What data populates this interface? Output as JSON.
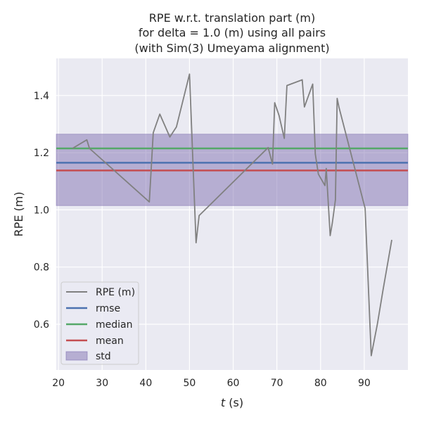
{
  "chart_data": {
    "type": "line",
    "title": [
      "RPE w.r.t. translation part (m)",
      "for delta = 1.0 (m) using all pairs",
      "(with Sim(3) Umeyama alignment)"
    ],
    "xlabel_italic": "t",
    "xlabel_unit": " (s)",
    "ylabel": "RPE (m)",
    "xlim": [
      19.5,
      100
    ],
    "ylim": [
      0.44,
      1.53
    ],
    "x_ticks": [
      20,
      30,
      40,
      50,
      60,
      70,
      80,
      90
    ],
    "y_ticks": [
      0.6,
      0.8,
      1.0,
      1.2,
      1.4
    ],
    "y_tick_labels": [
      "0.6",
      "0.8",
      "1.0",
      "1.2",
      "1.4"
    ],
    "grid": true,
    "legend_position": "lower-left",
    "colors": {
      "background": "#eaeaf2",
      "grid": "#ffffff",
      "rpe": "#808080",
      "rmse": "#4c72b0",
      "median": "#55a868",
      "mean": "#c44e52",
      "std_fill": "#8172b2"
    },
    "series": [
      {
        "name": "RPE (m)",
        "x": [
          23.2,
          26.5,
          27.1,
          40.8,
          41.7,
          43.2,
          45.5,
          47.0,
          50.0,
          51.5,
          52.2,
          68.0,
          69.0,
          69.5,
          70.5,
          71.7,
          72.3,
          75.8,
          76.3,
          78.2,
          78.8,
          79.5,
          81.0,
          81.3,
          82.2,
          82.7,
          83.4,
          83.8,
          84.2,
          90.2,
          91.6,
          93.0,
          94.3,
          96.3
        ],
        "y": [
          1.215,
          1.245,
          1.215,
          1.028,
          1.27,
          1.335,
          1.255,
          1.29,
          1.475,
          0.885,
          0.98,
          1.218,
          1.16,
          1.375,
          1.33,
          1.25,
          1.435,
          1.455,
          1.36,
          1.44,
          1.195,
          1.125,
          1.085,
          1.145,
          0.91,
          0.955,
          1.035,
          1.39,
          1.36,
          1.005,
          0.49,
          0.6,
          0.72,
          0.895
        ]
      },
      {
        "name": "rmse",
        "value": 1.165
      },
      {
        "name": "median",
        "value": 1.215
      },
      {
        "name": "mean",
        "value": 1.138
      },
      {
        "name": "std",
        "range": [
          1.015,
          1.265
        ]
      }
    ]
  }
}
